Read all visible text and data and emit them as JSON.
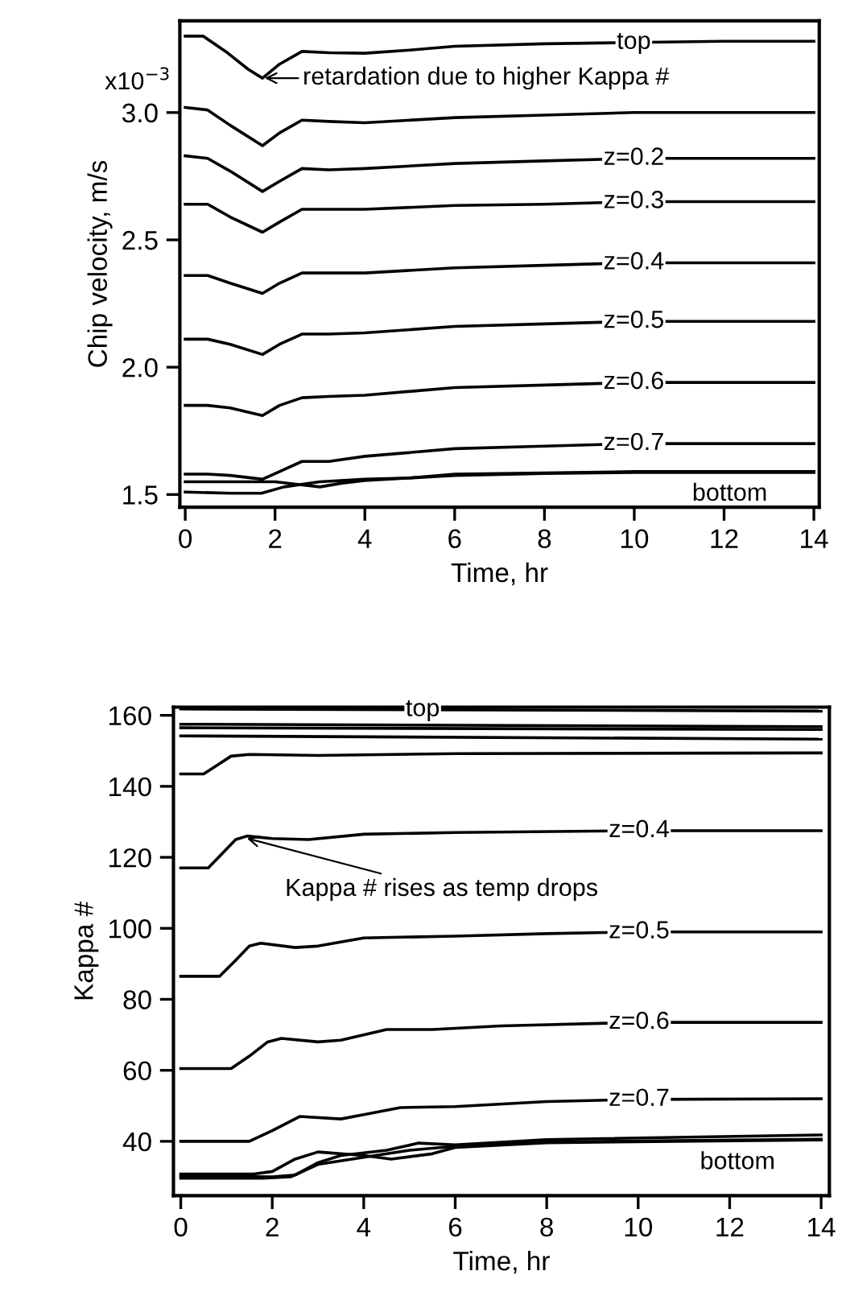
{
  "chart_data": [
    {
      "type": "line",
      "xlabel": "Time, hr",
      "ylabel": "Chip velocity, m/s",
      "xlim": [
        -0.12,
        14.12
      ],
      "ylim": [
        1.45,
        3.36
      ],
      "xticks": [
        0,
        2,
        4,
        6,
        8,
        10,
        12,
        14
      ],
      "yticks": [
        {
          "value": 1.5,
          "label": "1.5"
        },
        {
          "value": 2.0,
          "label": "2.0"
        },
        {
          "value": 2.5,
          "label": "2.5"
        },
        {
          "value": 3.0,
          "label": "3.0"
        }
      ],
      "grid": false,
      "marker": "none",
      "line_style": "solid",
      "annotations": [
        "x10$^{−3}$",
        {
          "text": "retardation due to higher Kappa #",
          "x": 1.72,
          "y": 3.135
        }
      ],
      "series": [
        {
          "name": "top",
          "color": "#000000",
          "x": [
            0,
            0.4,
            0.9,
            1.4,
            1.72,
            2.1,
            2.6,
            3.2,
            4,
            5,
            6,
            8,
            10,
            12,
            14
          ],
          "values": [
            3.3,
            3.3,
            3.24,
            3.17,
            3.135,
            3.19,
            3.24,
            3.235,
            3.233,
            3.245,
            3.26,
            3.27,
            3.275,
            3.28,
            3.28
          ]
        },
        {
          "color": "#000000",
          "x": [
            0,
            0.5,
            1,
            1.72,
            2.1,
            2.6,
            3.2,
            4,
            6,
            8,
            10,
            14
          ],
          "values": [
            3.02,
            3.01,
            2.95,
            2.87,
            2.92,
            2.97,
            2.965,
            2.96,
            2.98,
            2.99,
            3.0,
            3.0
          ]
        },
        {
          "name": "z=0.2",
          "color": "#000000",
          "x": [
            0,
            0.5,
            1,
            1.72,
            2.1,
            2.6,
            3.2,
            4,
            6,
            8,
            10,
            14
          ],
          "values": [
            2.83,
            2.82,
            2.77,
            2.69,
            2.73,
            2.78,
            2.775,
            2.78,
            2.8,
            2.81,
            2.82,
            2.82
          ]
        },
        {
          "name": "z=0.3",
          "color": "#000000",
          "x": [
            0,
            0.5,
            1,
            1.72,
            2.1,
            2.6,
            3.2,
            4,
            6,
            8,
            10,
            14
          ],
          "values": [
            2.64,
            2.64,
            2.59,
            2.53,
            2.57,
            2.62,
            2.62,
            2.62,
            2.635,
            2.64,
            2.65,
            2.65
          ]
        },
        {
          "name": "z=0.4",
          "color": "#000000",
          "x": [
            0,
            0.5,
            1,
            1.72,
            2.1,
            2.6,
            3.2,
            4,
            6,
            8,
            10,
            14
          ],
          "values": [
            2.36,
            2.36,
            2.33,
            2.29,
            2.33,
            2.37,
            2.37,
            2.37,
            2.39,
            2.4,
            2.41,
            2.41
          ]
        },
        {
          "name": "z=0.5",
          "color": "#000000",
          "x": [
            0,
            0.5,
            1,
            1.72,
            2.1,
            2.6,
            3.2,
            4,
            6,
            8,
            10,
            14
          ],
          "values": [
            2.11,
            2.11,
            2.09,
            2.05,
            2.09,
            2.13,
            2.13,
            2.135,
            2.16,
            2.17,
            2.18,
            2.18
          ]
        },
        {
          "name": "z=0.6",
          "color": "#000000",
          "x": [
            0,
            0.5,
            1,
            1.72,
            2.1,
            2.6,
            3.2,
            4,
            6,
            8,
            10,
            14
          ],
          "values": [
            1.85,
            1.85,
            1.84,
            1.81,
            1.85,
            1.88,
            1.885,
            1.89,
            1.92,
            1.93,
            1.94,
            1.94
          ]
        },
        {
          "name": "z=0.7",
          "color": "#000000",
          "x": [
            0,
            0.5,
            1,
            1.72,
            2.1,
            2.6,
            3.2,
            4,
            6,
            8,
            10,
            14
          ],
          "values": [
            1.58,
            1.58,
            1.575,
            1.56,
            1.59,
            1.63,
            1.63,
            1.65,
            1.68,
            1.69,
            1.7,
            1.7
          ]
        },
        {
          "color": "#000000",
          "x": [
            0,
            1,
            2,
            2.5,
            3,
            3.5,
            4,
            6,
            8,
            10,
            14
          ],
          "values": [
            1.55,
            1.55,
            1.55,
            1.54,
            1.53,
            1.545,
            1.555,
            1.575,
            1.583,
            1.587,
            1.587
          ]
        },
        {
          "name": "bottom",
          "color": "#000000",
          "x": [
            0,
            1,
            1.7,
            2.2,
            3,
            4,
            5,
            6,
            8,
            10,
            14
          ],
          "values": [
            1.51,
            1.505,
            1.505,
            1.53,
            1.55,
            1.56,
            1.565,
            1.58,
            1.585,
            1.59,
            1.59
          ]
        }
      ]
    },
    {
      "type": "line",
      "xlabel": "Time, hr",
      "ylabel": "Kappa #",
      "xlim": [
        -0.16,
        14.18
      ],
      "ylim": [
        24.7,
        162.3
      ],
      "xticks": [
        0,
        2,
        4,
        6,
        8,
        10,
        12,
        14
      ],
      "yticks": [
        40,
        60,
        80,
        100,
        120,
        140,
        160
      ],
      "grid": false,
      "marker": "none",
      "line_style": "solid",
      "annotations": [
        {
          "text": "Kappa # rises as temp drops",
          "x": 1.4,
          "y": 125.5
        }
      ],
      "series": [
        {
          "name": "top",
          "color": "#000000",
          "x": [
            0,
            14
          ],
          "values": [
            161.8,
            161.2
          ]
        },
        {
          "color": "#000000",
          "x": [
            0,
            14
          ],
          "values": [
            157.5,
            156.8
          ]
        },
        {
          "color": "#000000",
          "x": [
            0,
            14
          ],
          "values": [
            156.5,
            156.0
          ]
        },
        {
          "color": "#000000",
          "x": [
            0,
            14
          ],
          "values": [
            154.2,
            153.3
          ]
        },
        {
          "color": "#000000",
          "x": [
            0,
            0.5,
            0.8,
            1.1,
            1.5,
            3,
            6,
            14
          ],
          "values": [
            143.5,
            143.5,
            146,
            148.5,
            149,
            148.7,
            149.2,
            149.4
          ]
        },
        {
          "name": "z=0.4",
          "color": "#000000",
          "x": [
            0,
            0.6,
            0.9,
            1.2,
            1.45,
            2,
            2.8,
            4,
            6,
            10,
            14
          ],
          "values": [
            117,
            117,
            121,
            125,
            126,
            125.3,
            125,
            126.5,
            127,
            127.5,
            127.5
          ]
        },
        {
          "name": "z=0.5",
          "color": "#000000",
          "x": [
            0,
            0.85,
            1.2,
            1.5,
            1.75,
            2.5,
            3,
            4,
            6,
            8,
            10,
            14
          ],
          "values": [
            86.5,
            86.5,
            91,
            95,
            95.8,
            94.6,
            95,
            97.3,
            97.8,
            98.5,
            99,
            99
          ]
        },
        {
          "name": "z=0.6",
          "color": "#000000",
          "x": [
            0,
            1.1,
            1.5,
            1.9,
            2.2,
            3,
            3.5,
            4.5,
            5.5,
            7,
            10,
            14
          ],
          "values": [
            60.5,
            60.5,
            64,
            68,
            69,
            68,
            68.5,
            71.5,
            71.5,
            72.5,
            73.5,
            73.5
          ]
        },
        {
          "name": "z=0.7",
          "color": "#000000",
          "x": [
            0,
            1.5,
            2,
            2.6,
            3.5,
            4,
            4.8,
            6,
            8,
            10,
            14
          ],
          "values": [
            40,
            40,
            43,
            47,
            46.3,
            47.5,
            49.5,
            49.8,
            51.2,
            51.8,
            52
          ]
        },
        {
          "color": "#000000",
          "x": [
            0,
            1.6,
            2,
            2.5,
            3,
            4,
            4.6,
            5.5,
            6,
            8,
            14
          ],
          "values": [
            30.8,
            30.8,
            31.5,
            35,
            37,
            36,
            35,
            36.5,
            38.3,
            39.6,
            40.4
          ]
        },
        {
          "color": "#000000",
          "x": [
            0,
            2,
            2.5,
            3,
            3.5,
            4.5,
            5.2,
            6,
            8,
            14
          ],
          "values": [
            30.2,
            30,
            30.5,
            34,
            36,
            37.5,
            39.5,
            39,
            40.5,
            41.8
          ]
        },
        {
          "name": "bottom",
          "color": "#000000",
          "x": [
            0,
            1.8,
            2.4,
            3,
            4,
            5,
            6,
            8,
            14
          ],
          "values": [
            29.6,
            29.6,
            30,
            33.5,
            35.5,
            37.5,
            38.6,
            39.8,
            40.6
          ]
        }
      ]
    }
  ]
}
